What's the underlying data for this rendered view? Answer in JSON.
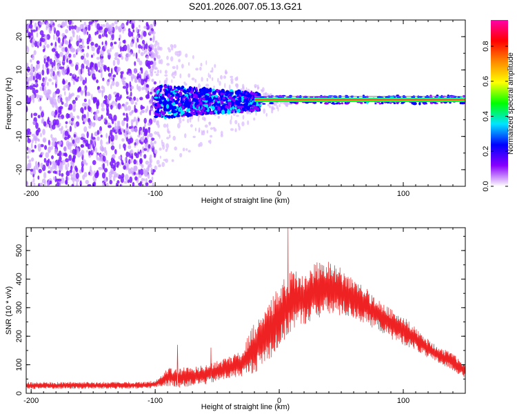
{
  "chart_data": [
    {
      "type": "heatmap",
      "title": "S201.2026.007.05.13.G21",
      "xlabel": "Height of straight line (km)",
      "ylabel": "Frequency (Hz)",
      "xlim": [
        -204,
        150
      ],
      "ylim": [
        -25,
        25
      ],
      "xticks": [
        -200,
        -100,
        0,
        100
      ],
      "xtick_labels": [
        "-200",
        "-100",
        "0",
        "100"
      ],
      "yticks": [
        20,
        10,
        0,
        -10,
        -20
      ],
      "ytick_labels": [
        "20",
        "10",
        "0",
        "-10",
        "-20"
      ],
      "colorbar": {
        "label": "Normalized spectral amplitude",
        "range": [
          0,
          0.95
        ],
        "ticks": [
          0.0,
          0.2,
          0.4,
          0.6,
          0.8
        ],
        "tick_labels": [
          "0.0",
          "0.2",
          "0.4",
          "0.6",
          "0.8"
        ],
        "colors": [
          "#ffffff",
          "#8800ff",
          "#0000ff",
          "#00e5ff",
          "#00ff00",
          "#ffff00",
          "#ff8800",
          "#ff0000",
          "#ff00aa"
        ]
      },
      "regions": [
        {
          "x_range": [
            -204,
            -100
          ],
          "freq_range": [
            -25,
            25
          ],
          "amplitude": 0.05,
          "description": "broadband noise"
        },
        {
          "x_range": [
            -100,
            -20
          ],
          "freq_range": [
            -4,
            5
          ],
          "amplitude": 0.2
        },
        {
          "x_range": [
            -20,
            150
          ],
          "center_freq": 1,
          "amplitude": 0.9
        }
      ]
    },
    {
      "type": "line",
      "xlabel": "Height of straight line (km)",
      "ylabel": "SNR (10 * v/v)",
      "xlim": [
        -204,
        150
      ],
      "ylim": [
        0,
        580
      ],
      "xticks": [
        -200,
        -100,
        0,
        100
      ],
      "xtick_labels": [
        "-200",
        "-100",
        "0",
        "100"
      ],
      "yticks": [
        0,
        100,
        200,
        300,
        400,
        500
      ],
      "ytick_labels": [
        "0",
        "100",
        "200",
        "300",
        "400",
        "500"
      ],
      "line_color": "#ee2222",
      "series": [
        {
          "name": "SNR",
          "x": [
            -204,
            -150,
            -110,
            -100,
            -90,
            -80,
            -60,
            -40,
            -30,
            -20,
            -10,
            0,
            10,
            20,
            30,
            40,
            50,
            60,
            70,
            80,
            90,
            100,
            110,
            120,
            130,
            140,
            150
          ],
          "low": [
            15,
            15,
            15,
            20,
            25,
            20,
            30,
            50,
            60,
            70,
            110,
            150,
            220,
            240,
            260,
            270,
            270,
            260,
            240,
            220,
            190,
            170,
            150,
            120,
            100,
            80,
            50
          ],
          "high": [
            40,
            40,
            40,
            45,
            90,
            90,
            100,
            130,
            150,
            250,
            300,
            380,
            440,
            420,
            460,
            470,
            440,
            400,
            370,
            330,
            300,
            270,
            230,
            190,
            160,
            140,
            100
          ],
          "spikes": [
            {
              "x": 7,
              "y": 580
            },
            {
              "x": -82,
              "y": 170
            },
            {
              "x": -55,
              "y": 160
            }
          ]
        }
      ]
    }
  ]
}
